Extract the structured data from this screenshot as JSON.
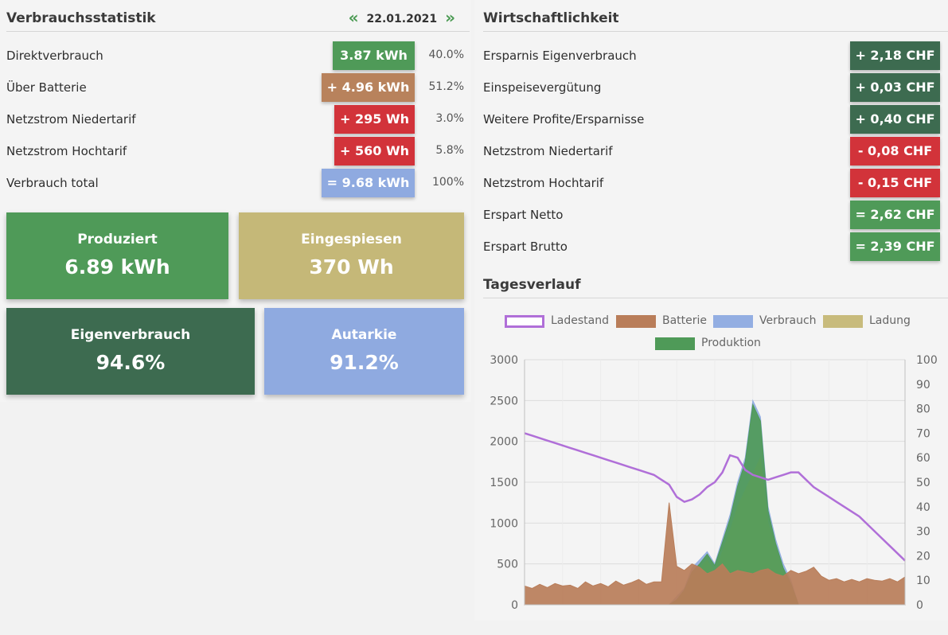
{
  "verbrauch": {
    "title": "Verbrauchsstatistik",
    "date": "22.01.2021",
    "prev_icon": "«",
    "next_icon": "»",
    "rows": [
      {
        "label": "Direktverbrauch",
        "value": "3.87 kWh",
        "pct": "40.0%",
        "color": "#4f9a58"
      },
      {
        "label": "Über Batterie",
        "value": "+ 4.96 kWh",
        "pct": "51.2%",
        "color": "#b8825c"
      },
      {
        "label": "Netzstrom Niedertarif",
        "value": "+ 295 Wh",
        "pct": "3.0%",
        "color": "#d2333a"
      },
      {
        "label": "Netzstrom Hochtarif",
        "value": "+ 560 Wh",
        "pct": "5.8%",
        "color": "#d2333a"
      },
      {
        "label": "Verbrauch total",
        "value": "= 9.68 kWh",
        "pct": "100%",
        "color": "#8faae0"
      }
    ]
  },
  "tiles": [
    {
      "label": "Produziert",
      "value": "6.89 kWh",
      "color": "#4f9a58"
    },
    {
      "label": "Eingespiesen",
      "value": "370 Wh",
      "color": "#c5b878"
    },
    {
      "label": "Eigenverbrauch",
      "value": "94.6%",
      "color": "#3d6b50"
    },
    {
      "label": "Autarkie",
      "value": "91.2%",
      "color": "#8faae0"
    }
  ],
  "wirtschaft": {
    "title": "Wirtschaftlichkeit",
    "rows": [
      {
        "label": "Ersparnis Eigenverbrauch",
        "value": "+ 2,18 CHF",
        "color": "#3d6b50"
      },
      {
        "label": "Einspeisevergütung",
        "value": "+ 0,03 CHF",
        "color": "#3d6b50"
      },
      {
        "label": "Weitere Profite/Ersparnisse",
        "value": "+ 0,40 CHF",
        "color": "#3d6b50"
      },
      {
        "label": "Netzstrom Niedertarif",
        "value": "- 0,08 CHF",
        "color": "#d2333a"
      },
      {
        "label": "Netzstrom Hochtarif",
        "value": "- 0,15 CHF",
        "color": "#d2333a"
      },
      {
        "label": "Erspart Netto",
        "value": "= 2,62 CHF",
        "color": "#4f9a58"
      },
      {
        "label": "Erspart Brutto",
        "value": "= 2,39 CHF",
        "color": "#4f9a58"
      }
    ]
  },
  "tagesverlauf": {
    "title": "Tagesverlauf"
  },
  "chart_data": {
    "type": "area",
    "title": "",
    "xlabel": "",
    "ylabel": "",
    "legend": [
      {
        "name": "Ladestand",
        "color": "#b06fd8",
        "style": "outline"
      },
      {
        "name": "Batterie",
        "color": "#b97d59",
        "style": "fill"
      },
      {
        "name": "Verbrauch",
        "color": "#93aee2",
        "style": "fill"
      },
      {
        "name": "Ladung",
        "color": "#c8bb7c",
        "style": "fill"
      },
      {
        "name": "Produktion",
        "color": "#4f9a58",
        "style": "fill"
      }
    ],
    "legend_position": "top",
    "ylim_left": [
      0,
      3000
    ],
    "ylim_right": [
      0,
      100
    ],
    "yticks_left": [
      "0",
      "500",
      "1000",
      "1500",
      "2000",
      "2500",
      "3000"
    ],
    "yticks_right": [
      "0",
      "10",
      "20",
      "30",
      "40",
      "50",
      "60",
      "70",
      "80",
      "90",
      "100"
    ],
    "grid": true,
    "x": [
      0,
      2,
      4,
      6,
      8,
      10,
      12,
      14,
      16,
      18,
      20,
      22,
      24,
      26,
      28,
      30,
      32,
      34,
      36,
      38,
      40,
      42,
      44,
      46,
      48,
      50,
      52,
      54,
      56,
      58,
      60,
      62,
      64,
      66,
      68,
      70,
      72,
      74,
      76,
      78,
      80,
      82,
      84,
      86,
      88,
      90,
      92,
      94,
      96,
      98,
      100
    ],
    "series": [
      {
        "name": "Ladestand",
        "axis": "right",
        "values": [
          70,
          69,
          68,
          67,
          66,
          65,
          64,
          63,
          62,
          61,
          60,
          59,
          58,
          57,
          56,
          55,
          54,
          53,
          51,
          49,
          44,
          42,
          43,
          45,
          48,
          50,
          54,
          61,
          60,
          55,
          53,
          52,
          51,
          52,
          53,
          54,
          54,
          51,
          48,
          46,
          44,
          42,
          40,
          38,
          36,
          33,
          30,
          27,
          24,
          21,
          18
        ]
      },
      {
        "name": "Batterie",
        "axis": "left",
        "values": [
          230,
          200,
          250,
          210,
          260,
          230,
          240,
          200,
          280,
          230,
          260,
          220,
          290,
          240,
          270,
          310,
          250,
          280,
          280,
          1250,
          470,
          420,
          500,
          460,
          380,
          420,
          500,
          380,
          420,
          400,
          380,
          420,
          440,
          380,
          350,
          420,
          380,
          410,
          460,
          350,
          300,
          320,
          280,
          310,
          280,
          320,
          300,
          290,
          320,
          280,
          340
        ]
      },
      {
        "name": "Verbrauch",
        "axis": "left",
        "values": [
          0,
          0,
          0,
          0,
          0,
          0,
          0,
          0,
          0,
          0,
          0,
          0,
          0,
          0,
          0,
          0,
          0,
          0,
          0,
          0,
          100,
          200,
          450,
          550,
          650,
          500,
          800,
          1100,
          1500,
          1800,
          2500,
          2300,
          1200,
          800,
          500,
          300,
          0,
          0,
          0,
          0,
          0,
          0,
          0,
          0,
          0,
          0,
          0,
          0,
          0,
          0,
          0
        ]
      },
      {
        "name": "Ladung",
        "axis": "left",
        "values": [
          0,
          0,
          0,
          0,
          0,
          0,
          0,
          0,
          0,
          0,
          0,
          0,
          0,
          0,
          0,
          0,
          0,
          0,
          0,
          0,
          50,
          150,
          350,
          450,
          550,
          400,
          650,
          900,
          1200,
          1400,
          1600,
          1800,
          1000,
          700,
          400,
          200,
          0,
          0,
          0,
          0,
          0,
          0,
          0,
          0,
          0,
          0,
          0,
          0,
          0,
          0,
          0
        ]
      },
      {
        "name": "Produktion",
        "axis": "left",
        "values": [
          0,
          0,
          0,
          0,
          0,
          0,
          0,
          0,
          0,
          0,
          0,
          0,
          0,
          0,
          0,
          0,
          0,
          0,
          0,
          0,
          60,
          180,
          400,
          500,
          620,
          480,
          760,
          1050,
          1450,
          1750,
          2450,
          2250,
          1150,
          750,
          450,
          260,
          0,
          0,
          0,
          0,
          0,
          0,
          0,
          0,
          0,
          0,
          0,
          0,
          0,
          0,
          0
        ]
      }
    ]
  }
}
